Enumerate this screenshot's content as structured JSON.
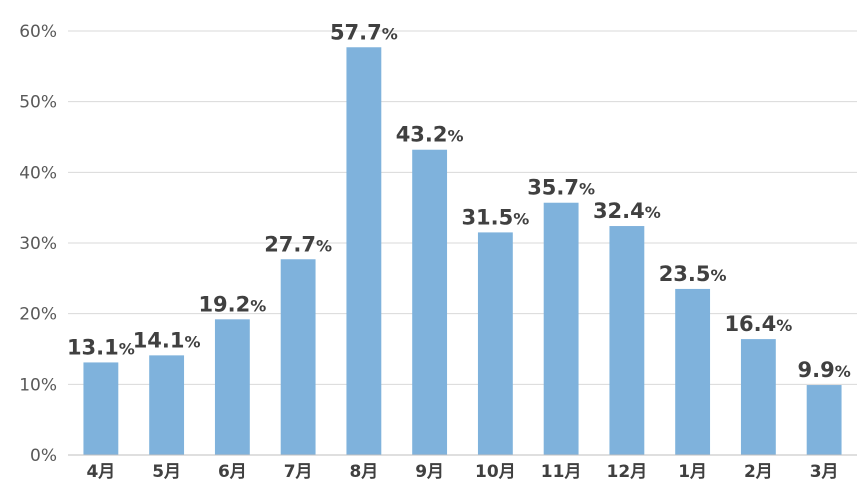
{
  "chart_data": {
    "type": "bar",
    "categories": [
      "4月",
      "5月",
      "6月",
      "7月",
      "8月",
      "9月",
      "10月",
      "11月",
      "12月",
      "1月",
      "2月",
      "3月"
    ],
    "values": [
      13.1,
      14.1,
      19.2,
      27.7,
      57.7,
      43.2,
      31.5,
      35.7,
      32.4,
      23.5,
      16.4,
      9.9
    ],
    "value_suffix": "%",
    "ylim": [
      0,
      60
    ],
    "yticks": [
      0,
      10,
      20,
      30,
      40,
      50,
      60
    ],
    "ytick_labels": [
      "0%",
      "10%",
      "20%",
      "30%",
      "40%",
      "50%",
      "60%"
    ],
    "title": "",
    "xlabel": "",
    "ylabel": "",
    "grid": true,
    "bar_color": "#7fb2dc"
  }
}
